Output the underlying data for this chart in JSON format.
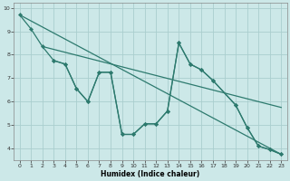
{
  "background_color": "#cce8e8",
  "grid_color": "#aacece",
  "line_color": "#2d7a6e",
  "xlabel": "Humidex (Indice chaleur)",
  "xlim": [
    -0.5,
    23.5
  ],
  "ylim": [
    3.5,
    10.2
  ],
  "yticks": [
    4,
    5,
    6,
    7,
    8,
    9,
    10
  ],
  "xticks": [
    0,
    1,
    2,
    3,
    4,
    5,
    6,
    7,
    8,
    9,
    10,
    11,
    12,
    13,
    14,
    15,
    16,
    17,
    18,
    19,
    20,
    21,
    22,
    23
  ],
  "straight_lines": [
    {
      "x": [
        0,
        23
      ],
      "y": [
        9.7,
        3.75
      ]
    },
    {
      "x": [
        2,
        23
      ],
      "y": [
        8.35,
        5.75
      ]
    }
  ],
  "zigzag1": {
    "x": [
      0,
      1,
      2,
      3,
      4,
      5,
      6,
      7,
      8,
      9,
      10,
      11,
      12,
      13,
      14,
      15,
      16,
      17,
      19,
      20,
      21,
      22,
      23
    ],
    "y": [
      9.7,
      9.1,
      8.35,
      7.75,
      7.6,
      6.55,
      6.0,
      7.25,
      7.25,
      4.6,
      4.6,
      5.05,
      5.05,
      5.6,
      8.5,
      7.6,
      7.35,
      6.9,
      5.85,
      4.9,
      4.1,
      3.95,
      3.75
    ]
  },
  "zigzag2": {
    "x": [
      3,
      4,
      5,
      6,
      7,
      8,
      9,
      10,
      11,
      12,
      13,
      14,
      15,
      16,
      17,
      19,
      20,
      21,
      22,
      23
    ],
    "y": [
      7.75,
      7.6,
      6.55,
      6.0,
      7.25,
      7.25,
      4.6,
      4.6,
      5.05,
      5.05,
      5.6,
      8.5,
      7.6,
      7.35,
      6.9,
      5.85,
      4.9,
      4.1,
      3.95,
      3.75
    ]
  }
}
